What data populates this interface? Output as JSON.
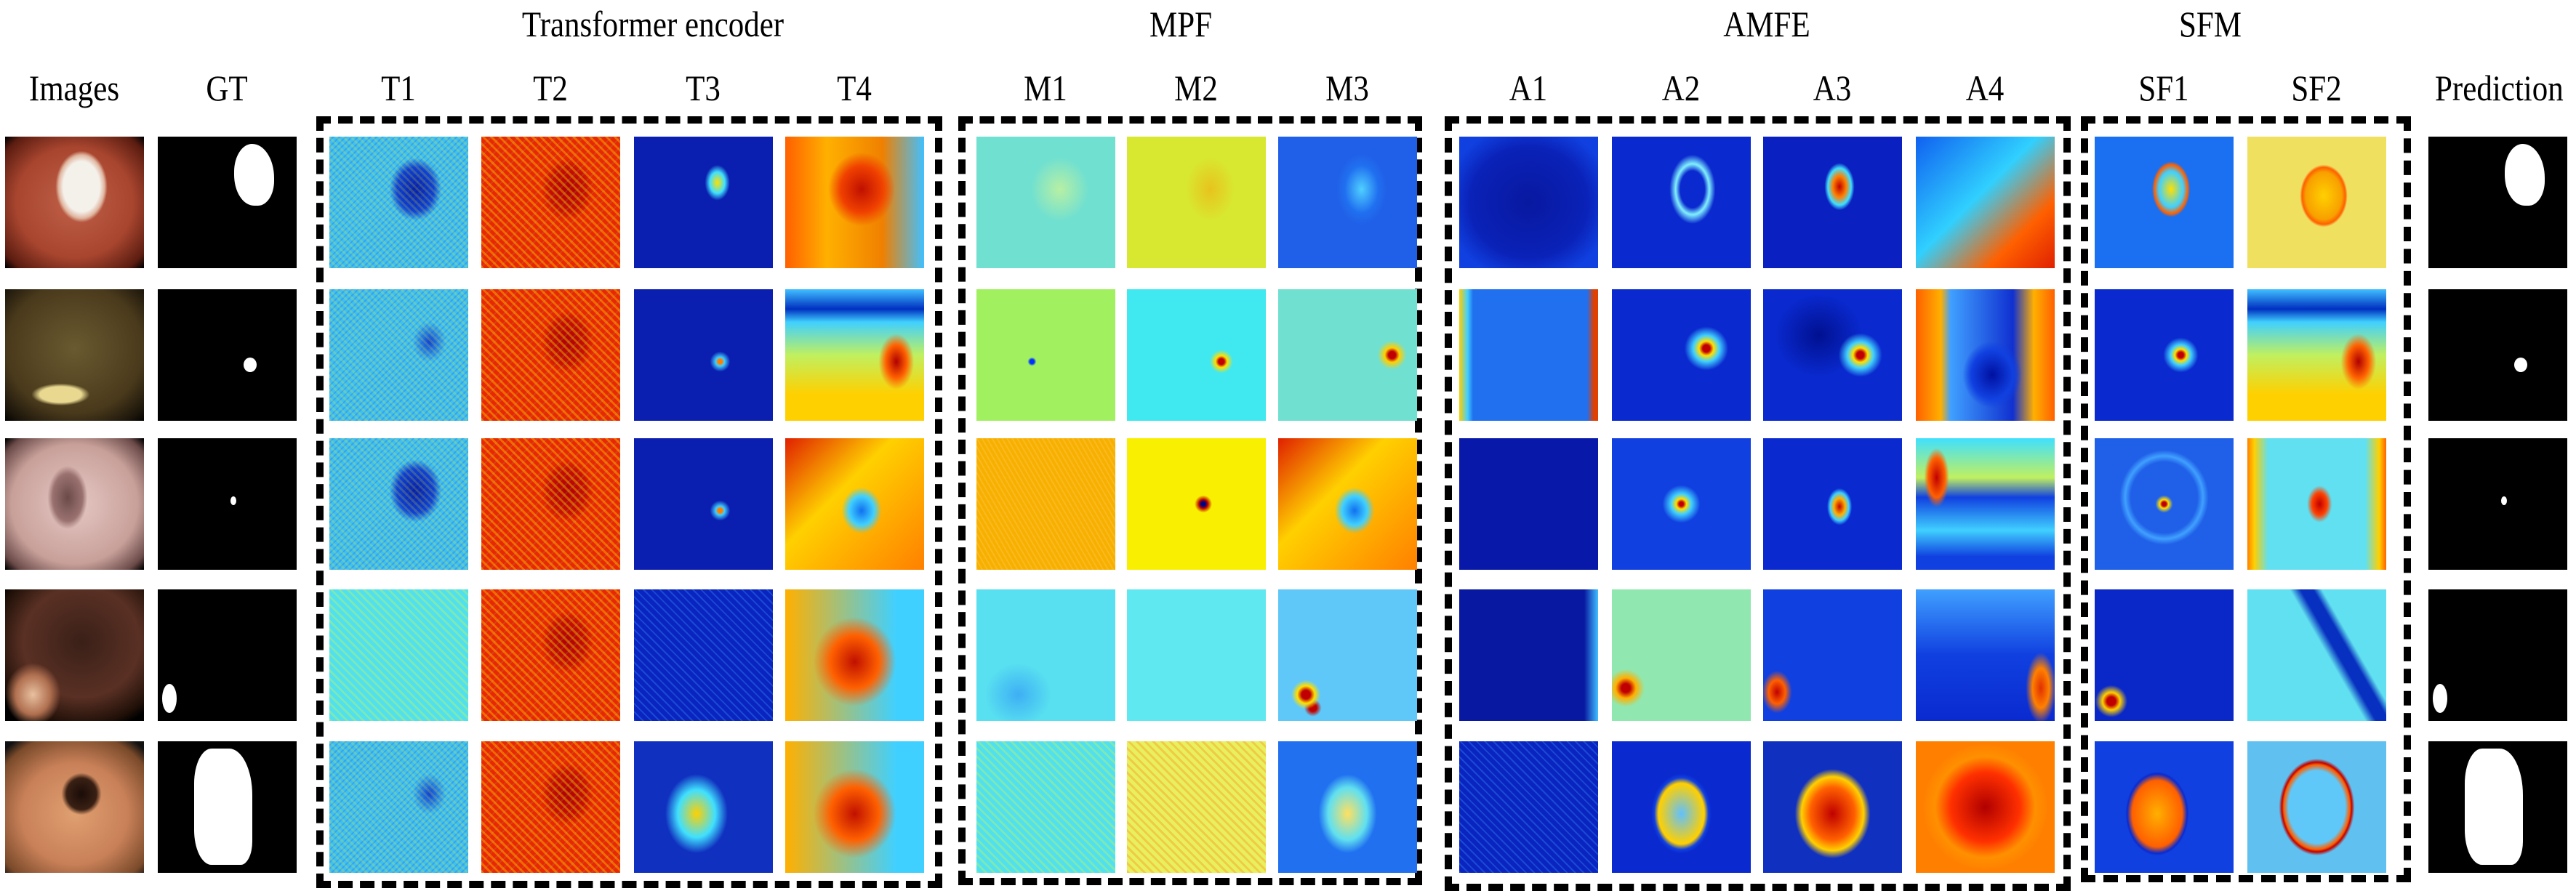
{
  "figure": {
    "group_titles": [
      {
        "id": "transformer-encoder",
        "text": "Transformer encoder"
      },
      {
        "id": "mpf",
        "text": "MPF"
      },
      {
        "id": "amfe",
        "text": "AMFE"
      },
      {
        "id": "sfm",
        "text": "SFM"
      }
    ],
    "column_labels": [
      "Images",
      "GT",
      "T1",
      "T2",
      "T3",
      "T4",
      "M1",
      "M2",
      "M3",
      "A1",
      "A2",
      "A3",
      "A4",
      "SF1",
      "SF2",
      "Prediction"
    ],
    "colormap": "jet",
    "rows": [
      {
        "image": "endoscopy-polyp-reddish-mucosa-white-lesion",
        "gt_mask": "large-blob-upper-right",
        "heatmaps": [
          "hm-noise-cyan",
          "hm-noise-red",
          "hm-blue-spot",
          "hm-blocky-warm",
          "hm-cyan-flat",
          "hm-yellow-flat",
          "hm-blue-mid",
          "hm-deep-blue",
          "hm-blue-ring",
          "hm-red-blob",
          "hm-gradient-diag",
          "hm-outline",
          "hm-yellow-outline"
        ],
        "prediction_mask": "large-blob-upper-right"
      },
      {
        "image": "endoscopy-olive-fold",
        "gt_mask": "small-blob-right",
        "heatmaps": [
          "hm-noise-cyan2",
          "hm-noise-red",
          "hm-blue-dot",
          "hm-warm-blocky2",
          "hm-green-flat",
          "hm-cyan-dot",
          "hm-lightcyan-dot",
          "hm-blue-edge",
          "hm-blue-spot-small",
          "hm-blue-spot-small2",
          "hm-blocky-mixed",
          "hm-blue-dot-sf",
          "hm-warm-blocky2"
        ],
        "prediction_mask": "small-blob-right"
      },
      {
        "image": "endoscopy-pink-lumen",
        "gt_mask": "tiny-blob-center",
        "heatmaps": [
          "hm-noise-cyan",
          "hm-noise-red",
          "hm-blue-dot",
          "hm-warm-mixed",
          "hm-orange-flat",
          "hm-yellow-dot",
          "hm-warm-mixed",
          "hm-deep-blue-plain",
          "hm-blue-center-dot",
          "hm-blue-center-red",
          "hm-blocky-yellowcyan",
          "hm-blue-ring-dot",
          "hm-cyan-red-center"
        ],
        "prediction_mask": "tiny-blob-center"
      },
      {
        "image": "endoscopy-dark-lumen",
        "gt_mask": "blob-lower-left",
        "heatmaps": [
          "hm-cyan-noisy",
          "hm-noise-red",
          "hm-blue-noise-dark",
          "hm-warm-blocky3",
          "hm-cyan-plain",
          "hm-cyan-light",
          "hm-bluecyan-spots",
          "hm-deep-blue-edge",
          "hm-greencyan-spot",
          "hm-blue-red-corner",
          "hm-blue-corner-red",
          "hm-darkblue-spot",
          "hm-cyan-darkstreak"
        ],
        "prediction_mask": "blob-lower-left"
      },
      {
        "image": "endoscopy-orange-large-polyp",
        "gt_mask": "large-shape-center",
        "heatmaps": [
          "hm-noise-cyan2",
          "hm-noise-red",
          "hm-blue-warm-shape",
          "hm-warm-blocky3",
          "hm-cyan-noisy",
          "hm-yellow-noisy",
          "hm-blue-warm-shape2",
          "hm-blue-noise-dark",
          "hm-blue-outline-cyan",
          "hm-red-big",
          "hm-red-huge",
          "hm-red-shape-sf",
          "hm-cyan-red-outline"
        ],
        "prediction_mask": "large-shape-center"
      }
    ]
  }
}
